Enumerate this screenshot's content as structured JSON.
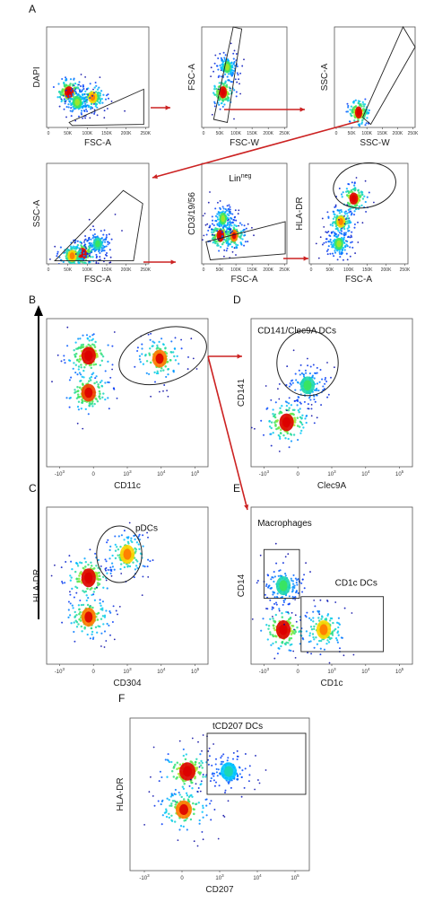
{
  "figure": {
    "panel_letters": [
      "A",
      "B",
      "C",
      "D",
      "E",
      "F"
    ],
    "flow_color": "#cc2222"
  },
  "chart_data": [
    {
      "type": "scatter",
      "panel": "A1",
      "xlabel": "FSC-A",
      "ylabel": "DAPI",
      "x_ticks": [
        "0",
        "50K",
        "100K",
        "150K",
        "200K",
        "250K"
      ],
      "hotspots": [
        {
          "x": 0.22,
          "y": 0.35,
          "level": 1.0
        },
        {
          "x": 0.45,
          "y": 0.3,
          "level": 0.8
        },
        {
          "x": 0.3,
          "y": 0.25,
          "level": 0.6
        }
      ],
      "gate": {
        "shape": "polygon",
        "label": ""
      }
    },
    {
      "type": "scatter",
      "panel": "A2",
      "xlabel": "FSC-W",
      "ylabel": "FSC-A",
      "x_ticks": [
        "0",
        "50K",
        "100K",
        "150K",
        "200K",
        "250K"
      ],
      "hotspots": [
        {
          "x": 0.25,
          "y": 0.35,
          "level": 1.0
        },
        {
          "x": 0.3,
          "y": 0.6,
          "level": 0.6
        }
      ],
      "gate": {
        "shape": "polygon",
        "label": ""
      }
    },
    {
      "type": "scatter",
      "panel": "A3",
      "xlabel": "SSC-W",
      "ylabel": "SSC-A",
      "x_ticks": [
        "0",
        "50K",
        "100K",
        "150K",
        "200K",
        "250K"
      ],
      "hotspots": [
        {
          "x": 0.3,
          "y": 0.15,
          "level": 1.0
        }
      ],
      "gate": {
        "shape": "polygon",
        "label": ""
      }
    },
    {
      "type": "scatter",
      "panel": "A4",
      "xlabel": "FSC-A",
      "ylabel": "SSC-A",
      "x_ticks": [
        "0",
        "50K",
        "100K",
        "150K",
        "200K",
        "250K"
      ],
      "hotspots": [
        {
          "x": 0.35,
          "y": 0.1,
          "level": 1.0
        },
        {
          "x": 0.25,
          "y": 0.08,
          "level": 0.8
        },
        {
          "x": 0.5,
          "y": 0.2,
          "level": 0.5
        }
      ],
      "gate": {
        "shape": "polygon",
        "label": ""
      }
    },
    {
      "type": "scatter",
      "panel": "A5",
      "xlabel": "FSC-A",
      "ylabel": "CD3/19/56",
      "x_ticks": [
        "0",
        "50K",
        "100K",
        "150K",
        "200K",
        "250K"
      ],
      "hotspots": [
        {
          "x": 0.22,
          "y": 0.28,
          "level": 1.0
        },
        {
          "x": 0.38,
          "y": 0.28,
          "level": 0.9
        },
        {
          "x": 0.25,
          "y": 0.45,
          "level": 0.6
        }
      ],
      "gate": {
        "shape": "polygon",
        "label": "Lin",
        "label_sup": "neg"
      }
    },
    {
      "type": "scatter",
      "panel": "A6",
      "xlabel": "FSC-A",
      "ylabel": "HLA-DR",
      "x_ticks": [
        "0",
        "50K",
        "100K",
        "150K",
        "200K",
        "250K"
      ],
      "hotspots": [
        {
          "x": 0.45,
          "y": 0.65,
          "level": 1.0
        },
        {
          "x": 0.32,
          "y": 0.42,
          "level": 0.8
        },
        {
          "x": 0.3,
          "y": 0.2,
          "level": 0.6
        }
      ],
      "gate": {
        "shape": "ellipse",
        "label": ""
      }
    },
    {
      "type": "scatter",
      "panel": "B",
      "xlabel": "CD11c",
      "ylabel": "",
      "x_ticks": [
        "-10^3",
        "0",
        "10^3",
        "10^4",
        "10^5"
      ],
      "hotspots": [
        {
          "x": 0.26,
          "y": 0.75,
          "level": 1.0
        },
        {
          "x": 0.26,
          "y": 0.5,
          "level": 0.95
        },
        {
          "x": 0.7,
          "y": 0.73,
          "level": 0.9
        }
      ],
      "gate": {
        "shape": "ellipse",
        "label": ""
      }
    },
    {
      "type": "scatter",
      "panel": "C",
      "xlabel": "CD304",
      "ylabel": "HLA-DR",
      "x_ticks": [
        "-10^3",
        "0",
        "10^3",
        "10^4",
        "10^5"
      ],
      "hotspots": [
        {
          "x": 0.26,
          "y": 0.55,
          "level": 1.0
        },
        {
          "x": 0.26,
          "y": 0.3,
          "level": 0.9
        },
        {
          "x": 0.5,
          "y": 0.7,
          "level": 0.8
        }
      ],
      "gate": {
        "shape": "ellipse",
        "label": "pDCs"
      }
    },
    {
      "type": "scatter",
      "panel": "D",
      "xlabel": "Clec9A",
      "ylabel": "CD141",
      "x_ticks": [
        "-10^3",
        "0",
        "10^3",
        "10^4",
        "10^5"
      ],
      "hotspots": [
        {
          "x": 0.22,
          "y": 0.3,
          "level": 1.0
        },
        {
          "x": 0.35,
          "y": 0.55,
          "level": 0.5
        }
      ],
      "gate": {
        "shape": "ellipse",
        "label": "CD141/Clec9A DCs"
      }
    },
    {
      "type": "scatter",
      "panel": "E",
      "xlabel": "CD1c",
      "ylabel": "CD14",
      "x_ticks": [
        "-10^3",
        "0",
        "10^3",
        "10^4",
        "10^5"
      ],
      "hotspots": [
        {
          "x": 0.2,
          "y": 0.22,
          "level": 1.0
        },
        {
          "x": 0.45,
          "y": 0.22,
          "level": 0.8
        },
        {
          "x": 0.2,
          "y": 0.5,
          "level": 0.5
        }
      ],
      "gate": {
        "shape": "rect",
        "label": "CD1c DCs"
      },
      "gate2": {
        "shape": "rect",
        "label": "Macrophages"
      }
    },
    {
      "type": "scatter",
      "panel": "F",
      "xlabel": "CD207",
      "ylabel": "HLA-DR",
      "x_ticks": [
        "-10^3",
        "0",
        "10^3",
        "10^4",
        "10^5"
      ],
      "hotspots": [
        {
          "x": 0.32,
          "y": 0.65,
          "level": 1.0
        },
        {
          "x": 0.3,
          "y": 0.4,
          "level": 0.9
        },
        {
          "x": 0.55,
          "y": 0.65,
          "level": 0.4
        }
      ],
      "gate": {
        "shape": "rect",
        "label": "tCD207 DCs"
      }
    }
  ]
}
